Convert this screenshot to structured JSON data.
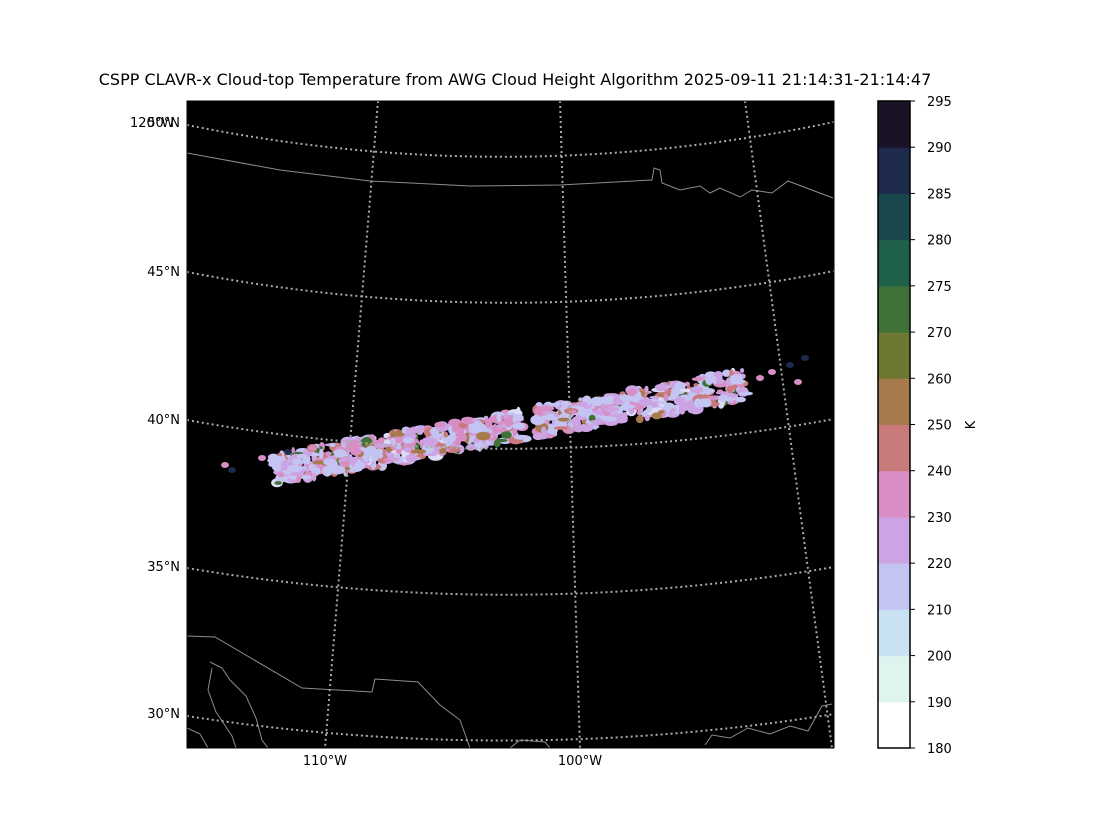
{
  "title": "CSPP CLAVR-x Cloud-top Temperature from AWG Cloud Height Algorithm 2025-09-11 21:14:31-21:14:47",
  "map": {
    "lat_labels": [
      "50°N",
      "45°N",
      "40°N",
      "35°N",
      "30°N"
    ],
    "lon_labels": [
      "120°W",
      "110°W",
      "100°W"
    ],
    "background_color": "#000000",
    "gridline_color": "#aaaaaa",
    "border_color": "#8c8c8c"
  },
  "colorbar": {
    "unit_label": "K",
    "ticks": [
      "180",
      "190",
      "200",
      "210",
      "220",
      "230",
      "240",
      "250",
      "260",
      "270",
      "275",
      "280",
      "285",
      "290",
      "295"
    ],
    "colors": [
      "#ffffff",
      "#dff4ee",
      "#c8e2f2",
      "#c4c4f2",
      "#cca4e4",
      "#d88ec4",
      "#c87a7a",
      "#a67a4c",
      "#6e7832",
      "#3e7236",
      "#1f6048",
      "#18484e",
      "#1e2a4c",
      "#1c1228",
      "#000000"
    ]
  },
  "swath_colors": [
    "#c4c4f2",
    "#cca4e4",
    "#d88ec4",
    "#c87a7a",
    "#a67a4c",
    "#3e7236",
    "#1e2a4c",
    "#dcdcf6"
  ]
}
